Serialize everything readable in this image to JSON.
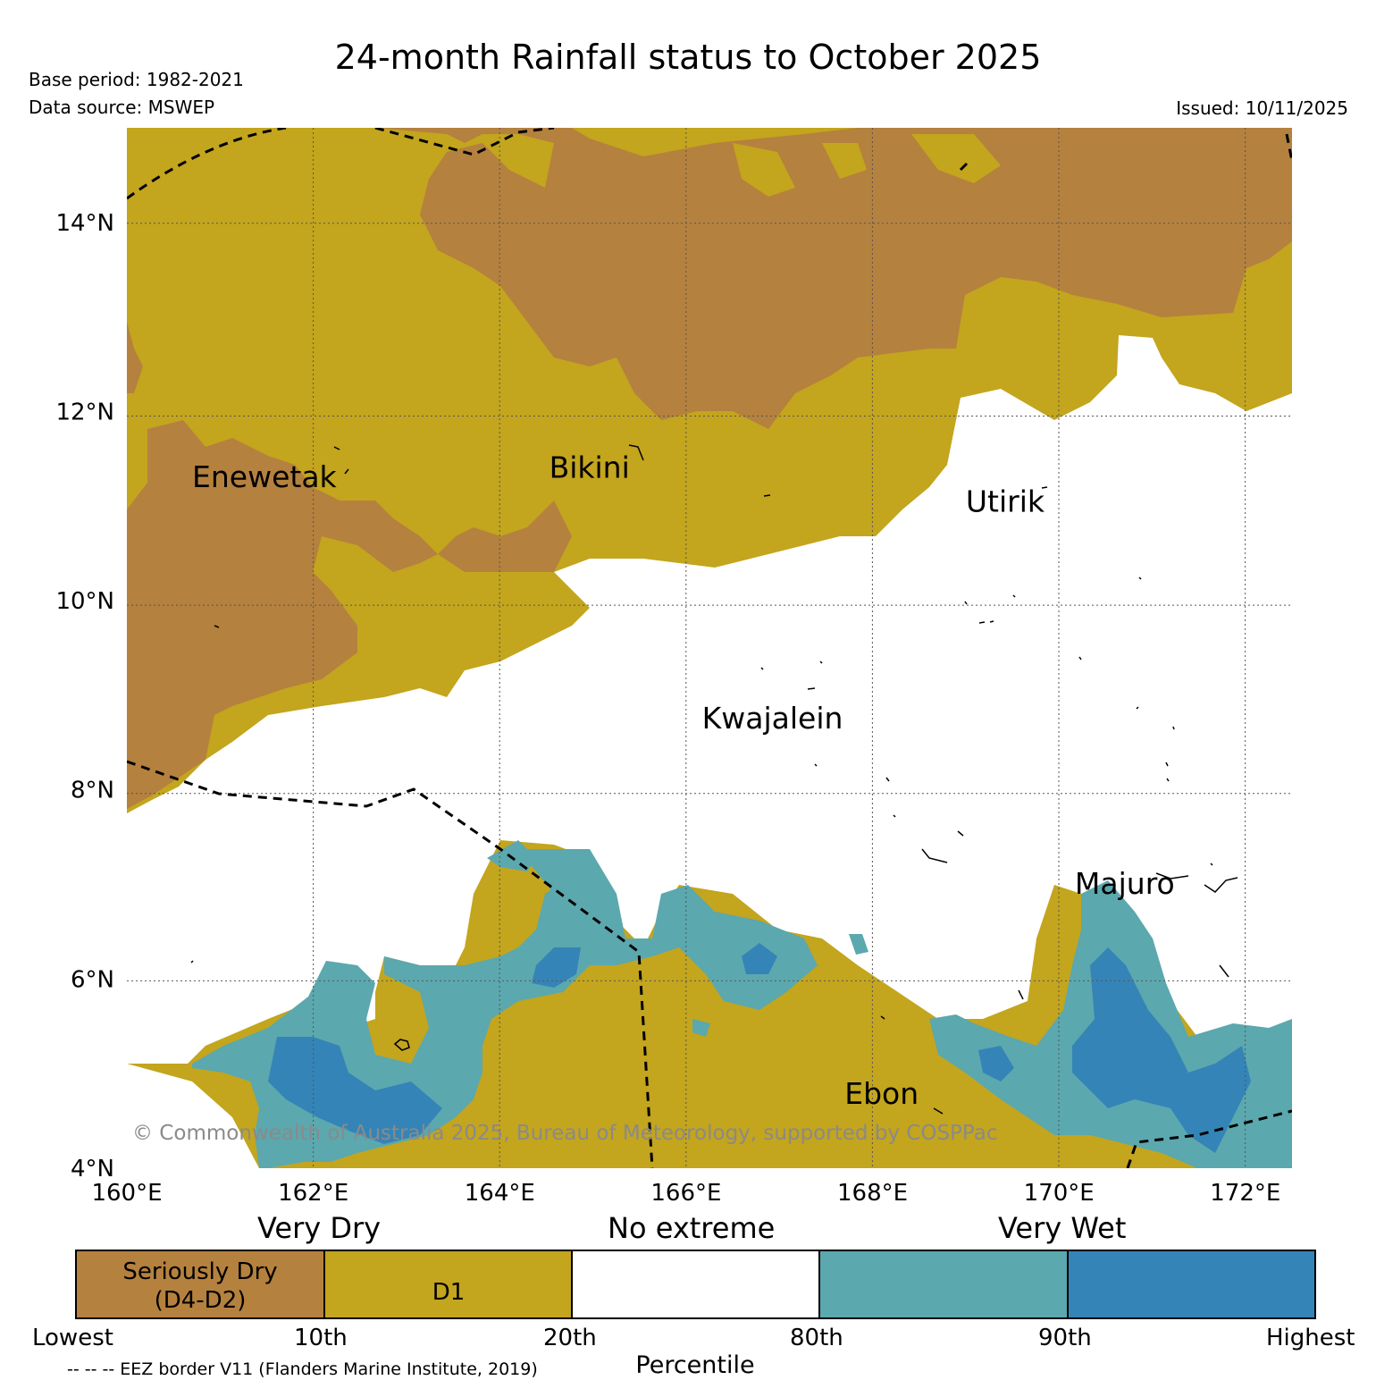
{
  "title": "24-month Rainfall status to October 2025",
  "base_period": "Base period: 1982-2021",
  "data_source": "Data source: MSWEP",
  "issued": "Issued: 10/11/2025",
  "copyright": "© Commonwealth of Australia 2025, Bureau of Meteorology, supported by COSPPac",
  "eez_note": "-- -- -- EEZ border V11 (Flanders Marine Institute, 2019)",
  "map": {
    "lon_range": [
      160,
      172.5
    ],
    "lat_range": [
      4,
      15
    ],
    "lon_ticks": [
      {
        "value": 160,
        "label": "160°E"
      },
      {
        "value": 162,
        "label": "162°E"
      },
      {
        "value": 164,
        "label": "164°E"
      },
      {
        "value": 166,
        "label": "166°E"
      },
      {
        "value": 168,
        "label": "168°E"
      },
      {
        "value": 170,
        "label": "170°E"
      },
      {
        "value": 172,
        "label": "172°E"
      }
    ],
    "lat_ticks": [
      {
        "value": 4,
        "label": "4°N"
      },
      {
        "value": 6,
        "label": "6°N"
      },
      {
        "value": 8,
        "label": "8°N"
      },
      {
        "value": 10,
        "label": "10°N"
      },
      {
        "value": 12,
        "label": "12°N"
      },
      {
        "value": 14,
        "label": "14°N"
      }
    ],
    "places": [
      {
        "name": "Enewetak",
        "lon": 160.7,
        "lat": 11.2
      },
      {
        "name": "Bikini",
        "lon": 164.53,
        "lat": 11.3
      },
      {
        "name": "Utirik",
        "lon": 169.0,
        "lat": 10.94
      },
      {
        "name": "Kwajalein",
        "lon": 166.17,
        "lat": 8.65
      },
      {
        "name": "Majuro",
        "lon": 170.17,
        "lat": 6.9
      },
      {
        "name": "Ebon",
        "lon": 167.7,
        "lat": 4.68
      }
    ],
    "grid": true
  },
  "legend": {
    "groups": [
      {
        "label": "Very Dry"
      },
      {
        "label": "No extreme"
      },
      {
        "label": "Very Wet"
      }
    ],
    "boxes": [
      {
        "color": "#b5813e",
        "line1": "Seriously Dry",
        "line2": "(D4-D2)"
      },
      {
        "color": "#c3a51e",
        "line1": "",
        "line2": "D1"
      },
      {
        "color": "#ffffff",
        "line1": "",
        "line2": ""
      },
      {
        "color": "#5ba8ae",
        "line1": "",
        "line2": ""
      },
      {
        "color": "#3584b7",
        "line1": "",
        "line2": ""
      }
    ],
    "percentiles": [
      "Lowest",
      "10th",
      "20th",
      "80th",
      "90th",
      "Highest"
    ],
    "axis_label": "Percentile"
  },
  "colors": {
    "seriously_dry": "#b5813e",
    "d1": "#c3a51e",
    "no_extreme": "#ffffff",
    "very_wet_80": "#5ba8ae",
    "very_wet_90": "#3584b7"
  }
}
